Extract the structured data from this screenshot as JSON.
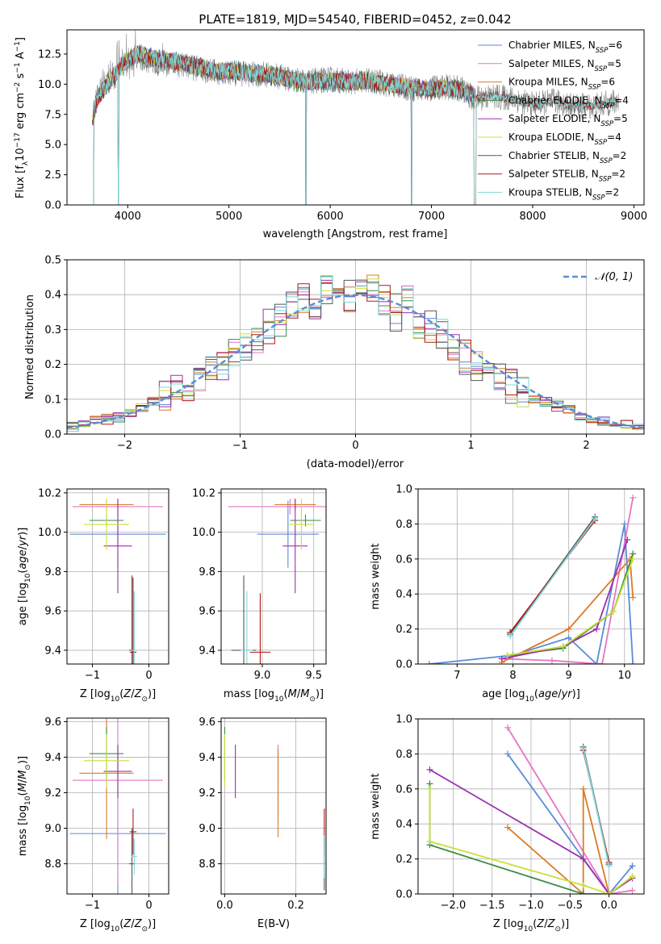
{
  "figure": {
    "title": "PLATE=1819, MJD=54540, FIBERID=0452, z=0.042"
  },
  "colors": {
    "Chabrier MILES": "#5b8bd6",
    "Salpeter MILES": "#e377c2",
    "Kroupa MILES": "#d97b28",
    "Chabrier ELODIE": "#3c8a4a",
    "Salpeter ELODIE": "#9a2fb0",
    "Kroupa ELODIE": "#c9e03a",
    "Chabrier STELIB": "#555555",
    "Salpeter STELIB": "#b01818",
    "Kroupa STELIB": "#7fd8d8",
    "data": "#888888",
    "grid": "#b0b0b0",
    "normal": "#5b8bd6"
  },
  "legend_spectrum": [
    {
      "label": "Chabrier MILES, N",
      "sub": "SSP",
      "tail": "=6"
    },
    {
      "label": "Salpeter MILES, N",
      "sub": "SSP",
      "tail": "=5"
    },
    {
      "label": "Kroupa MILES, N",
      "sub": "SSP",
      "tail": "=6"
    },
    {
      "label": "Chabrier ELODIE, N",
      "sub": "SSP",
      "tail": "=4"
    },
    {
      "label": "Salpeter ELODIE, N",
      "sub": "SSP",
      "tail": "=5"
    },
    {
      "label": "Kroupa ELODIE, N",
      "sub": "SSP",
      "tail": "=4"
    },
    {
      "label": "Chabrier STELIB, N",
      "sub": "SSP",
      "tail": "=2"
    },
    {
      "label": "Salpeter STELIB, N",
      "sub": "SSP",
      "tail": "=2"
    },
    {
      "label": "Kroupa STELIB, N",
      "sub": "SSP",
      "tail": "=2"
    }
  ],
  "chart_data": [
    {
      "type": "line",
      "id": "spectrum",
      "xlabel": "wavelength [Angstrom, rest frame]",
      "ylabel": "Flux [f_λ 10^-17 erg cm^-2 s^-1 A^-1]",
      "xlim": [
        3400,
        9100
      ],
      "ylim": [
        0,
        14.5
      ],
      "xticks": [
        4000,
        5000,
        6000,
        7000,
        8000,
        9000
      ],
      "yticks": [
        0.0,
        2.5,
        5.0,
        7.5,
        10.0,
        12.5
      ],
      "data_spectrum": {
        "x": [
          3650,
          3700,
          3800,
          3900,
          4000,
          4100,
          4200,
          4300,
          4500,
          4700,
          4861,
          5000,
          5200,
          5400,
          5600,
          5800,
          6000,
          6200,
          6400,
          6563,
          6700,
          6900,
          7100,
          7300,
          7420,
          7600,
          7800,
          8000,
          8200,
          8400,
          8600,
          8800
        ],
        "y": [
          7.5,
          9.0,
          10.5,
          11.2,
          12.0,
          12.2,
          12.0,
          11.8,
          11.6,
          11.3,
          11.0,
          11.0,
          10.8,
          10.8,
          10.4,
          10.2,
          10.4,
          10.2,
          10.3,
          10.0,
          9.8,
          9.5,
          9.8,
          9.6,
          8.8,
          9.0,
          8.8,
          8.3,
          8.6,
          8.2,
          8.2,
          8.5
        ]
      },
      "model_spectrum": {
        "x": [
          3650,
          3700,
          3800,
          3900,
          4000,
          4100,
          4200,
          4300,
          4500,
          4700,
          4861,
          5000,
          5200,
          5400,
          5600,
          5800,
          6000,
          6200,
          6400,
          6563,
          6700,
          6900,
          7100,
          7300,
          7420
        ],
        "y": [
          7.0,
          8.8,
          10.0,
          11.0,
          12.0,
          12.5,
          12.3,
          12.0,
          11.8,
          11.5,
          11.1,
          11.1,
          10.9,
          10.8,
          10.4,
          10.2,
          10.3,
          10.2,
          10.2,
          10.0,
          9.9,
          9.6,
          9.7,
          9.5,
          9.0
        ]
      },
      "data_end_x": 8850
    },
    {
      "type": "bar",
      "id": "residuals",
      "xlabel": "(data-model)/error",
      "ylabel": "Normed distribution",
      "xlim": [
        -2.5,
        2.5
      ],
      "ylim": [
        0,
        0.5
      ],
      "xticks": [
        -2,
        -1,
        0,
        1,
        2
      ],
      "yticks": [
        0.0,
        0.1,
        0.2,
        0.3,
        0.4,
        0.5
      ],
      "bin_width": 0.1,
      "x": [
        -2.45,
        -2.35,
        -2.25,
        -2.15,
        -2.05,
        -1.95,
        -1.85,
        -1.75,
        -1.65,
        -1.55,
        -1.45,
        -1.35,
        -1.25,
        -1.15,
        -1.05,
        -0.95,
        -0.85,
        -0.75,
        -0.65,
        -0.55,
        -0.45,
        -0.35,
        -0.25,
        -0.15,
        -0.05,
        0.05,
        0.15,
        0.25,
        0.35,
        0.45,
        0.55,
        0.65,
        0.75,
        0.85,
        0.95,
        1.05,
        1.15,
        1.25,
        1.35,
        1.45,
        1.55,
        1.65,
        1.75,
        1.85,
        1.95,
        2.05,
        2.15,
        2.25,
        2.35,
        2.45
      ],
      "base": [
        0.02,
        0.03,
        0.04,
        0.045,
        0.05,
        0.06,
        0.075,
        0.095,
        0.11,
        0.13,
        0.15,
        0.17,
        0.19,
        0.2,
        0.22,
        0.25,
        0.27,
        0.31,
        0.33,
        0.37,
        0.39,
        0.38,
        0.42,
        0.41,
        0.4,
        0.39,
        0.42,
        0.38,
        0.35,
        0.39,
        0.31,
        0.3,
        0.29,
        0.25,
        0.22,
        0.19,
        0.17,
        0.16,
        0.14,
        0.12,
        0.1,
        0.09,
        0.08,
        0.07,
        0.05,
        0.04,
        0.035,
        0.03,
        0.025,
        0.02
      ],
      "offsets": [
        0.0,
        0.012,
        -0.01,
        0.018,
        -0.015,
        0.008,
        -0.02,
        0.022,
        -0.006
      ],
      "normal_label": "N(0,1)"
    },
    {
      "type": "scatter",
      "id": "age-vs-Z",
      "xlabel": "Z [log10(Z/Z⊙)]",
      "ylabel": "age [log10(age/yr)]",
      "xlim": [
        -1.45,
        0.35
      ],
      "ylim": [
        9.33,
        10.22
      ],
      "xticks": [
        -1,
        0
      ],
      "yticks": [
        9.4,
        9.6,
        9.8,
        10.0,
        10.2
      ],
      "points": [
        {
          "model": "Chabrier MILES",
          "x": -0.55,
          "xerr": 0.85,
          "y": 9.99,
          "yerr": 0.17
        },
        {
          "model": "Salpeter MILES",
          "x": -0.55,
          "xerr": 0.8,
          "y": 10.13,
          "yerr": 0.04
        },
        {
          "model": "Kroupa MILES",
          "x": -0.75,
          "xerr": 0.48,
          "y": 10.14,
          "yerr": 0.03
        },
        {
          "model": "Chabrier ELODIE",
          "x": -0.75,
          "xerr": 0.3,
          "y": 10.06,
          "yerr": 0.03
        },
        {
          "model": "Salpeter ELODIE",
          "x": -0.55,
          "xerr": 0.25,
          "y": 9.93,
          "yerr": 0.24
        },
        {
          "model": "Kroupa ELODIE",
          "x": -0.75,
          "xerr": 0.4,
          "y": 10.04,
          "yerr": 0.13
        },
        {
          "model": "Chabrier STELIB",
          "x": -0.3,
          "xerr": 0.05,
          "y": 9.4,
          "yerr": 0.38
        },
        {
          "model": "Salpeter STELIB",
          "x": -0.28,
          "xerr": 0.06,
          "y": 9.39,
          "yerr": 0.38
        },
        {
          "model": "Kroupa STELIB",
          "x": -0.26,
          "xerr": 0.05,
          "y": 9.4,
          "yerr": 0.3
        }
      ]
    },
    {
      "type": "scatter",
      "id": "age-vs-mass",
      "xlabel": "mass [log10(M/M⊙)]",
      "ylabel": "",
      "xlim": [
        8.6,
        9.62
      ],
      "ylim": [
        9.33,
        10.22
      ],
      "xticks": [
        9.0,
        9.5
      ],
      "yticks": [
        9.4,
        9.6,
        9.8,
        10.0,
        10.2
      ],
      "points": [
        {
          "model": "Chabrier MILES",
          "x": 9.25,
          "xerr": 0.3,
          "y": 9.99,
          "yerr": 0.17
        },
        {
          "model": "Salpeter MILES",
          "x": 9.27,
          "xerr": 0.6,
          "y": 10.13,
          "yerr": 0.04
        },
        {
          "model": "Kroupa MILES",
          "x": 9.32,
          "xerr": 0.2,
          "y": 10.14,
          "yerr": 0.03
        },
        {
          "model": "Chabrier ELODIE",
          "x": 9.42,
          "xerr": 0.15,
          "y": 10.06,
          "yerr": 0.03
        },
        {
          "model": "Salpeter ELODIE",
          "x": 9.32,
          "xerr": 0.12,
          "y": 9.93,
          "yerr": 0.24
        },
        {
          "model": "Kroupa ELODIE",
          "x": 9.38,
          "xerr": 0.12,
          "y": 10.04,
          "yerr": 0.13
        },
        {
          "model": "Chabrier STELIB",
          "x": 8.82,
          "xerr": 0.12,
          "y": 9.4,
          "yerr": 0.38
        },
        {
          "model": "Salpeter STELIB",
          "x": 8.98,
          "xerr": 0.1,
          "y": 9.39,
          "yerr": 0.3
        },
        {
          "model": "Kroupa STELIB",
          "x": 8.85,
          "xerr": 0.06,
          "y": 9.4,
          "yerr": 0.3
        }
      ]
    },
    {
      "type": "line",
      "id": "weight-vs-age",
      "xlabel": "age [log10(age/yr)]",
      "ylabel": "mass weight",
      "xlim": [
        6.3,
        10.35
      ],
      "ylim": [
        0.0,
        1.0
      ],
      "xticks": [
        7,
        8,
        9,
        10
      ],
      "yticks": [
        0.0,
        0.2,
        0.4,
        0.6,
        0.8,
        1.0
      ],
      "series": [
        {
          "model": "Chabrier MILES",
          "x": [
            6.5,
            8.0,
            9.0,
            9.5,
            10.0,
            10.15
          ],
          "y": [
            0.0,
            0.05,
            0.15,
            0.0,
            0.8,
            0.0
          ]
        },
        {
          "model": "Salpeter MILES",
          "x": [
            7.8,
            8.7,
            9.6,
            10.15
          ],
          "y": [
            0.03,
            0.02,
            0.0,
            0.95
          ]
        },
        {
          "model": "Kroupa MILES",
          "x": [
            7.8,
            9.0,
            10.1,
            10.15
          ],
          "y": [
            0.01,
            0.2,
            0.6,
            0.38
          ]
        },
        {
          "model": "Chabrier ELODIE",
          "x": [
            7.9,
            8.9,
            9.8,
            10.15
          ],
          "y": [
            0.05,
            0.09,
            0.3,
            0.63
          ]
        },
        {
          "model": "Salpeter ELODIE",
          "x": [
            7.8,
            8.9,
            9.5,
            10.05
          ],
          "y": [
            0.03,
            0.1,
            0.2,
            0.71
          ]
        },
        {
          "model": "Kroupa ELODIE",
          "x": [
            7.9,
            8.9,
            9.8,
            10.15
          ],
          "y": [
            0.05,
            0.1,
            0.3,
            0.6
          ]
        },
        {
          "model": "Chabrier STELIB",
          "x": [
            7.95,
            9.47
          ],
          "y": [
            0.17,
            0.84
          ]
        },
        {
          "model": "Salpeter STELIB",
          "x": [
            7.95,
            9.47
          ],
          "y": [
            0.18,
            0.82
          ]
        },
        {
          "model": "Kroupa STELIB",
          "x": [
            7.95,
            9.47
          ],
          "y": [
            0.16,
            0.83
          ]
        }
      ]
    },
    {
      "type": "scatter",
      "id": "mass-vs-Z",
      "xlabel": "Z [log10(Z/Z⊙)]",
      "ylabel": "mass [log10(M/M⊙)]",
      "xlim": [
        -1.45,
        0.35
      ],
      "ylim": [
        8.63,
        9.62
      ],
      "xticks": [
        -1,
        0
      ],
      "yticks": [
        8.8,
        9.0,
        9.2,
        9.4,
        9.6
      ],
      "points": [
        {
          "model": "Chabrier MILES",
          "x": -0.55,
          "xerr": 0.85,
          "y": 8.97,
          "yerr": 0.5
        },
        {
          "model": "Salpeter MILES",
          "x": -0.55,
          "xerr": 0.8,
          "y": 9.27,
          "yerr": 0.58
        },
        {
          "model": "Kroupa MILES",
          "x": -0.75,
          "xerr": 0.48,
          "y": 9.31,
          "yerr": 0.37
        },
        {
          "model": "Chabrier ELODIE",
          "x": -0.75,
          "xerr": 0.3,
          "y": 9.42,
          "yerr": 0.15
        },
        {
          "model": "Salpeter ELODIE",
          "x": -0.55,
          "xerr": 0.25,
          "y": 9.32,
          "yerr": 0.15
        },
        {
          "model": "Kroupa ELODIE",
          "x": -0.75,
          "xerr": 0.4,
          "y": 9.38,
          "yerr": 0.15
        },
        {
          "model": "Chabrier STELIB",
          "x": -0.3,
          "xerr": 0.05,
          "y": 8.8,
          "yerr": 0.2
        },
        {
          "model": "Salpeter STELIB",
          "x": -0.28,
          "xerr": 0.06,
          "y": 8.98,
          "yerr": 0.13
        },
        {
          "model": "Kroupa STELIB",
          "x": -0.26,
          "xerr": 0.05,
          "y": 8.84,
          "yerr": 0.1
        }
      ]
    },
    {
      "type": "scatter",
      "id": "mass-vs-EBV",
      "xlabel": "E(B-V)",
      "ylabel": "",
      "xlim": [
        -0.01,
        0.285
      ],
      "ylim": [
        8.63,
        9.62
      ],
      "xticks": [
        0.0,
        0.2
      ],
      "yticks": [
        8.8,
        9.0,
        9.2,
        9.4,
        9.6
      ],
      "points": [
        {
          "model": "Chabrier MILES",
          "x": 0.15,
          "xerr": 0.0,
          "y": 9.25,
          "yerr": 0.2
        },
        {
          "model": "Salpeter MILES",
          "x": 0.15,
          "xerr": 0.0,
          "y": 9.27,
          "yerr": 0.2
        },
        {
          "model": "Kroupa MILES",
          "x": 0.15,
          "xerr": 0.0,
          "y": 9.2,
          "yerr": 0.25
        },
        {
          "model": "Chabrier ELODIE",
          "x": 0.0,
          "xerr": 0.0,
          "y": 9.42,
          "yerr": 0.15
        },
        {
          "model": "Salpeter ELODIE",
          "x": 0.03,
          "xerr": 0.0,
          "y": 9.32,
          "yerr": 0.15
        },
        {
          "model": "Kroupa ELODIE",
          "x": 0.0,
          "xerr": 0.0,
          "y": 9.38,
          "yerr": 0.15
        },
        {
          "model": "Chabrier STELIB",
          "x": 0.28,
          "xerr": 0.0,
          "y": 8.8,
          "yerr": 0.15
        },
        {
          "model": "Salpeter STELIB",
          "x": 0.28,
          "xerr": 0.0,
          "y": 8.98,
          "yerr": 0.13
        },
        {
          "model": "Kroupa STELIB",
          "x": 0.28,
          "xerr": 0.0,
          "y": 8.84,
          "yerr": 0.12
        }
      ]
    },
    {
      "type": "line",
      "id": "weight-vs-Z",
      "xlabel": "Z [log10(Z/Z⊙)]",
      "ylabel": "mass weight",
      "xlim": [
        -2.45,
        0.45
      ],
      "ylim": [
        0.0,
        1.0
      ],
      "xticks": [
        -2.0,
        -1.5,
        -1.0,
        -0.5,
        0.0
      ],
      "yticks": [
        0.0,
        0.2,
        0.4,
        0.6,
        0.8,
        1.0
      ],
      "series": [
        {
          "model": "Chabrier MILES",
          "x": [
            -1.3,
            0.0,
            0.3,
            0.3
          ],
          "y": [
            0.8,
            0.0,
            0.16,
            0.16
          ]
        },
        {
          "model": "Salpeter MILES",
          "x": [
            -1.3,
            0.0,
            0.3
          ],
          "y": [
            0.95,
            0.0,
            0.02
          ]
        },
        {
          "model": "Kroupa MILES",
          "x": [
            -1.3,
            -0.33,
            -0.33,
            0.0,
            0.3
          ],
          "y": [
            0.38,
            0.0,
            0.6,
            0.0,
            0.1
          ]
        },
        {
          "model": "Chabrier ELODIE",
          "x": [
            -2.3,
            -2.3,
            -0.33,
            0.0
          ],
          "y": [
            0.63,
            0.28,
            0.0,
            0.0
          ]
        },
        {
          "model": "Salpeter ELODIE",
          "x": [
            -2.3,
            -0.33,
            0.0,
            0.3
          ],
          "y": [
            0.71,
            0.2,
            0.0,
            0.09
          ]
        },
        {
          "model": "Kroupa ELODIE",
          "x": [
            -2.3,
            -2.3,
            -0.33,
            0.0,
            0.3
          ],
          "y": [
            0.6,
            0.3,
            0.05,
            0.0,
            0.1
          ]
        },
        {
          "model": "Chabrier STELIB",
          "x": [
            -0.33,
            0.0
          ],
          "y": [
            0.84,
            0.17
          ]
        },
        {
          "model": "Salpeter STELIB",
          "x": [
            -0.33,
            0.0
          ],
          "y": [
            0.82,
            0.18
          ]
        },
        {
          "model": "Kroupa STELIB",
          "x": [
            -0.33,
            0.0
          ],
          "y": [
            0.83,
            0.16
          ]
        }
      ]
    }
  ]
}
